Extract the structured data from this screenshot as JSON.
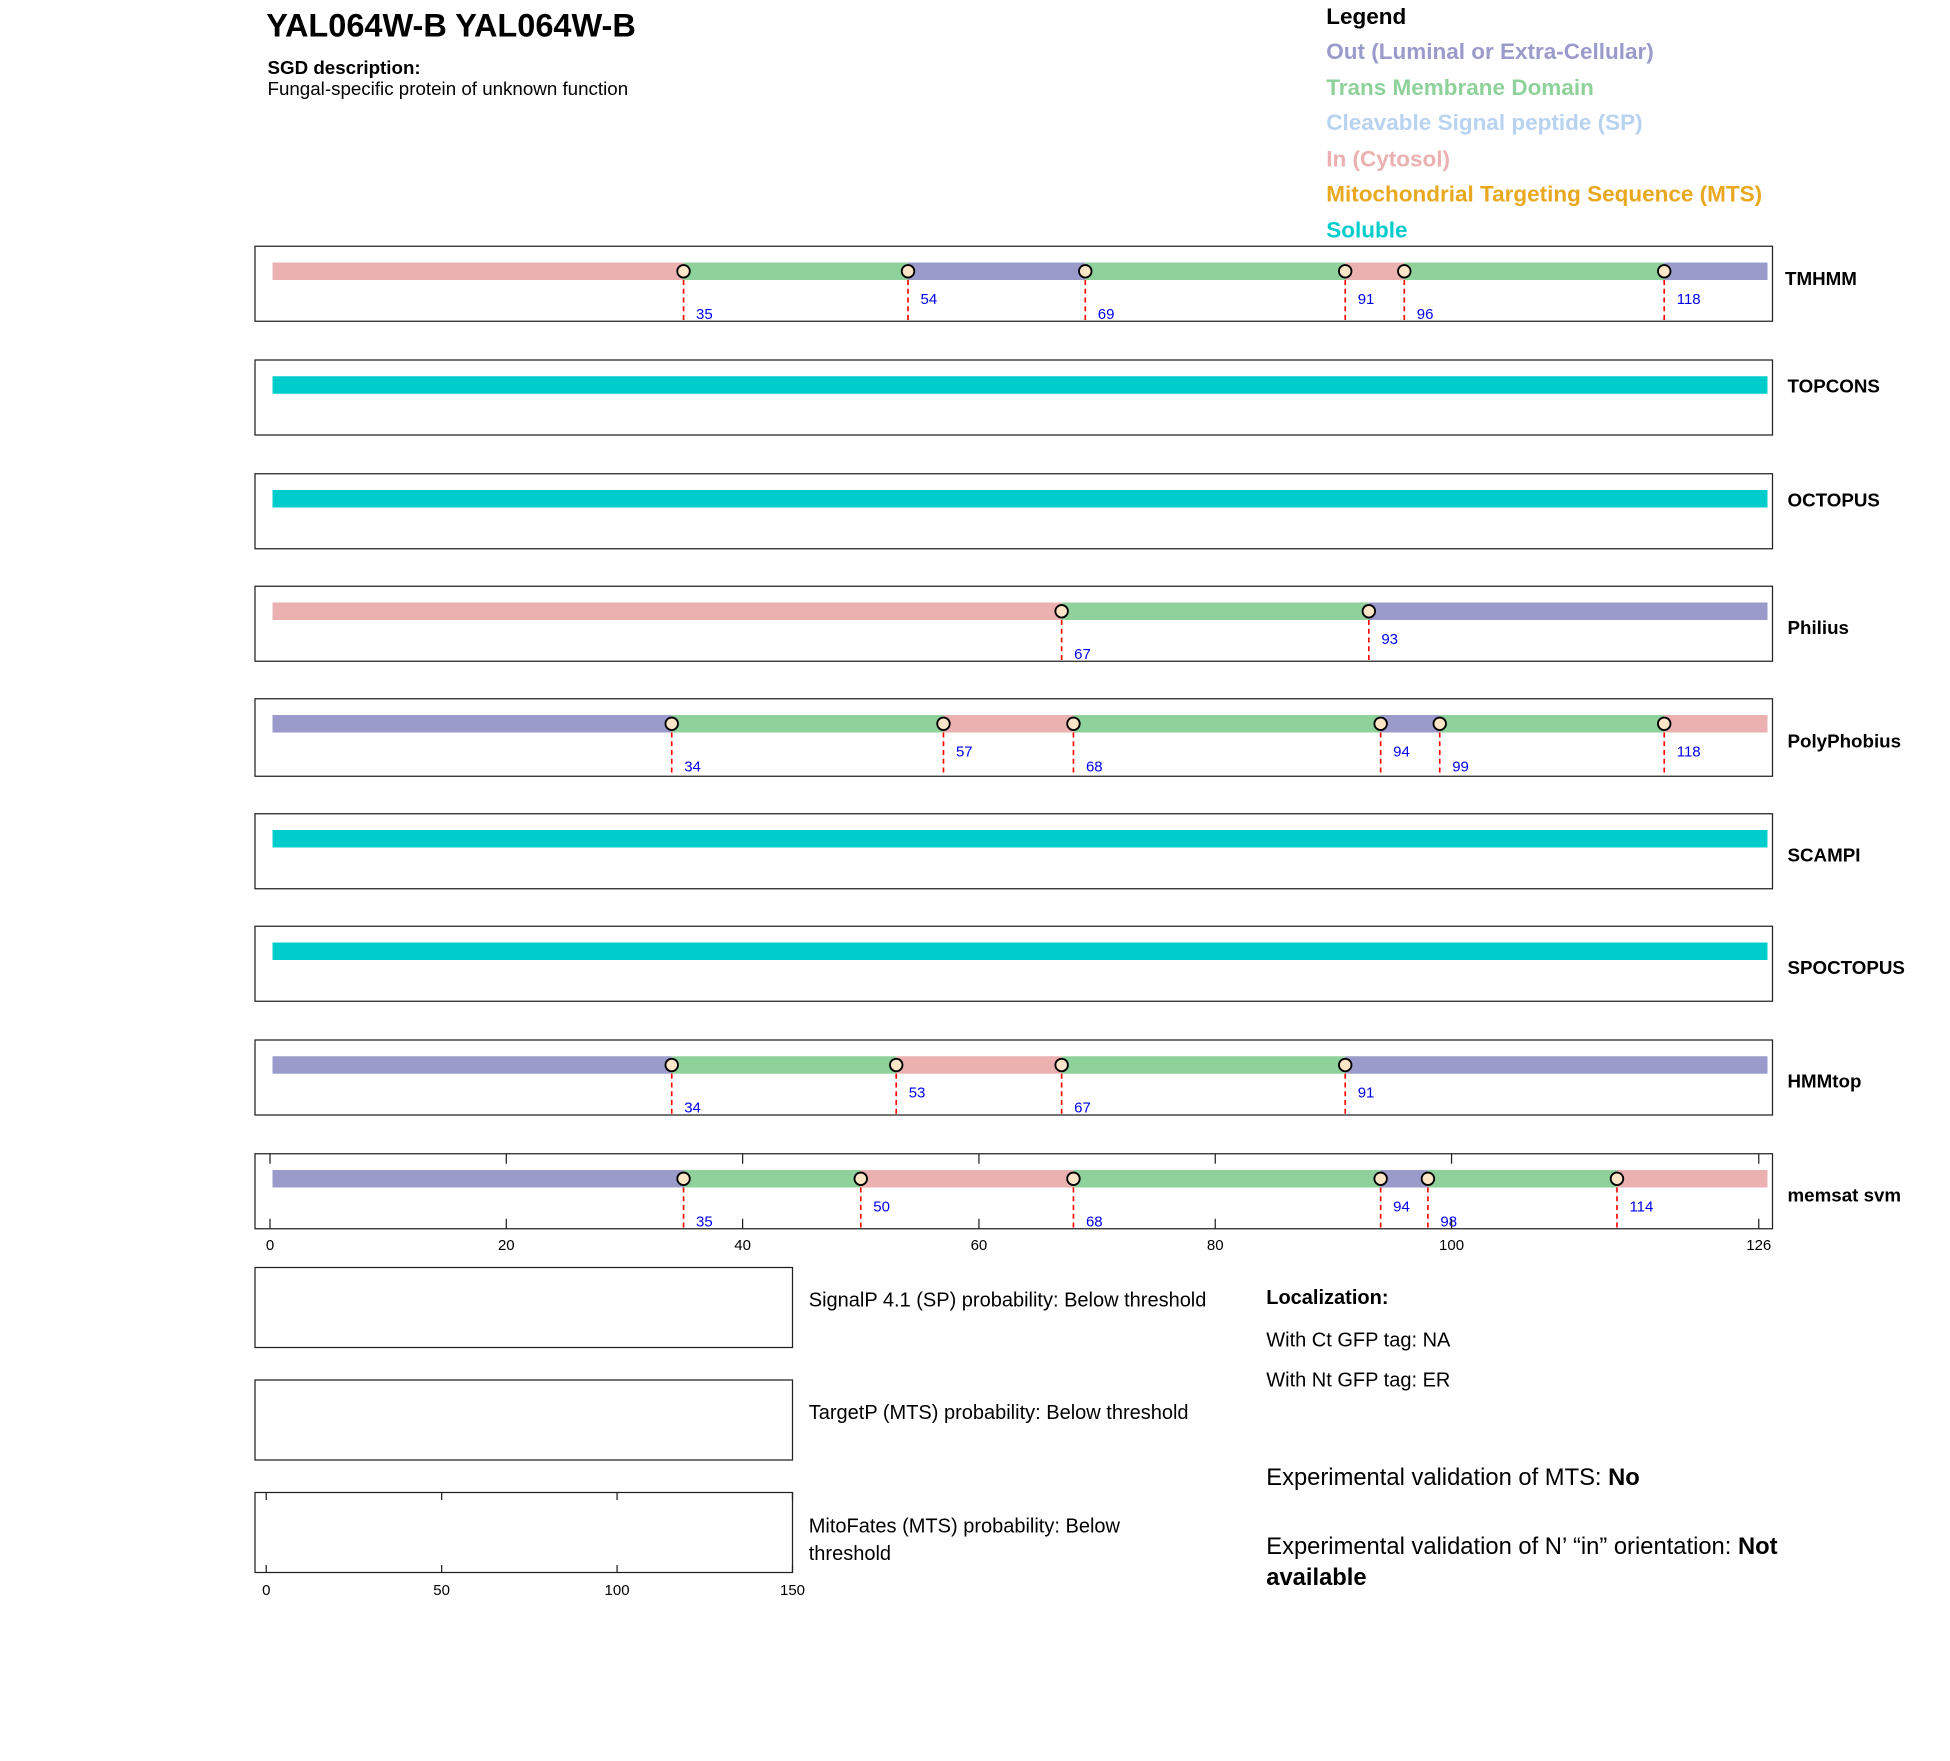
{
  "header": {
    "title": "YAL064W-B  YAL064W-B",
    "description_label": "SGD description:",
    "description": "Fungal-specific protein of unknown function"
  },
  "legend": {
    "title": "Legend",
    "items": [
      {
        "key": "out",
        "label": "Out (Luminal or Extra-Cellular)",
        "color": "#9b9bcb"
      },
      {
        "key": "tm",
        "label": "Trans Membrane Domain",
        "color": "#8fd19a"
      },
      {
        "key": "sp",
        "label": "Cleavable Signal peptide (SP)",
        "color": "#b8d3f0"
      },
      {
        "key": "in",
        "label": "In (Cytosol)",
        "color": "#ebb0b0"
      },
      {
        "key": "mts",
        "label": "Mitochondrial Targeting Sequence (MTS)",
        "color": "#e8a820"
      },
      {
        "key": "soluble",
        "label": "Soluble",
        "color": "#00cccc"
      }
    ]
  },
  "chart_data": {
    "type": "track",
    "length": 126,
    "xlim": [
      0,
      126
    ],
    "xticks": [
      0,
      20,
      40,
      60,
      80,
      100,
      126
    ],
    "tracks": [
      {
        "name": "TMHMM",
        "segments": [
          [
            "in",
            0,
            35
          ],
          [
            "tm",
            35,
            54
          ],
          [
            "out",
            54,
            69
          ],
          [
            "tm",
            69,
            91
          ],
          [
            "in",
            91,
            96
          ],
          [
            "tm",
            96,
            118
          ],
          [
            "out",
            118,
            126
          ]
        ],
        "boundaries": [
          35,
          54,
          69,
          91,
          96,
          118
        ]
      },
      {
        "name": "TOPCONS",
        "segments": [
          [
            "soluble",
            0,
            126
          ]
        ],
        "boundaries": []
      },
      {
        "name": "OCTOPUS",
        "segments": [
          [
            "soluble",
            0,
            126
          ]
        ],
        "boundaries": []
      },
      {
        "name": "Philius",
        "segments": [
          [
            "in",
            0,
            67
          ],
          [
            "tm",
            67,
            93
          ],
          [
            "out",
            93,
            126
          ]
        ],
        "boundaries": [
          67,
          93
        ]
      },
      {
        "name": "PolyPhobius",
        "segments": [
          [
            "out",
            0,
            34
          ],
          [
            "tm",
            34,
            57
          ],
          [
            "in",
            57,
            68
          ],
          [
            "tm",
            68,
            94
          ],
          [
            "out",
            94,
            99
          ],
          [
            "tm",
            99,
            118
          ],
          [
            "in",
            118,
            126
          ]
        ],
        "boundaries": [
          34,
          57,
          68,
          94,
          99,
          118
        ]
      },
      {
        "name": "SCAMPI",
        "segments": [
          [
            "soluble",
            0,
            126
          ]
        ],
        "boundaries": []
      },
      {
        "name": "SPOCTOPUS",
        "segments": [
          [
            "soluble",
            0,
            126
          ]
        ],
        "boundaries": []
      },
      {
        "name": "HMMtop",
        "segments": [
          [
            "out",
            0,
            34
          ],
          [
            "tm",
            34,
            53
          ],
          [
            "in",
            53,
            67
          ],
          [
            "tm",
            67,
            91
          ],
          [
            "out",
            91,
            126
          ]
        ],
        "boundaries": [
          34,
          53,
          67,
          91
        ]
      },
      {
        "name": "memsat svm",
        "segments": [
          [
            "out",
            0,
            35
          ],
          [
            "tm",
            35,
            50
          ],
          [
            "in",
            50,
            68
          ],
          [
            "tm",
            68,
            94
          ],
          [
            "out",
            94,
            98
          ],
          [
            "tm",
            98,
            114
          ],
          [
            "in",
            114,
            126
          ]
        ],
        "boundaries": [
          35,
          50,
          68,
          94,
          98,
          114
        ]
      }
    ],
    "probability_panels": {
      "xlim": [
        0,
        150
      ],
      "xticks": [
        0,
        50,
        100,
        150
      ],
      "items": [
        {
          "label": "SignalP 4.1 (SP) probability: Below threshold"
        },
        {
          "label": "TargetP (MTS) probability: Below threshold"
        },
        {
          "label": "MitoFates (MTS) probability: Below threshold"
        }
      ]
    }
  },
  "localization": {
    "title": "Localization:",
    "ct": "With Ct GFP tag: NA",
    "nt": "With Nt GFP tag: ER",
    "mts_label": "Experimental validation of MTS: ",
    "mts_value": "No",
    "orient_label": "Experimental validation of N’ “in” orientation: ",
    "orient_value": "Not available"
  }
}
